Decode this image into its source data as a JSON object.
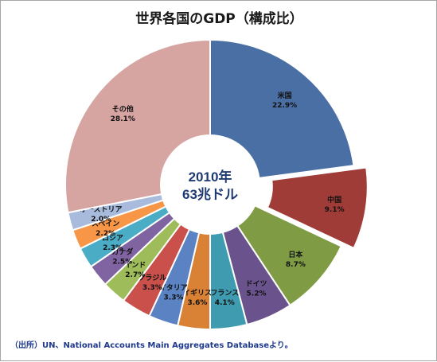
{
  "chart_data": {
    "type": "pie",
    "title": "世界各国のGDP（構成比）",
    "center_label": [
      "2010年",
      "63兆ドル"
    ],
    "source": "（出所）UN、National Accounts Main Aggregates Databaseより。",
    "slices": [
      {
        "name": "米国",
        "value": 22.9,
        "label": "22.9%",
        "color": "#4a6fa5",
        "exploded": false
      },
      {
        "name": "中国",
        "value": 9.1,
        "label": "9.1%",
        "color": "#a03c37",
        "exploded": true
      },
      {
        "name": "日本",
        "value": 8.7,
        "label": "8.7%",
        "color": "#7f9c45",
        "exploded": false
      },
      {
        "name": "ドイツ",
        "value": 5.2,
        "label": "5.2%",
        "color": "#6a538c",
        "exploded": false
      },
      {
        "name": "フランス",
        "value": 4.1,
        "label": "4.1%",
        "color": "#3f9bb0",
        "exploded": false
      },
      {
        "name": "イギリス",
        "value": 3.6,
        "label": "3.6%",
        "color": "#d98236",
        "exploded": false
      },
      {
        "name": "イタリア",
        "value": 3.3,
        "label": "3.3%",
        "color": "#5b82c2",
        "exploded": false
      },
      {
        "name": "ブラジル",
        "value": 3.3,
        "label": "3.3%",
        "color": "#c9504b",
        "exploded": false
      },
      {
        "name": "インド",
        "value": 2.7,
        "label": "2.7%",
        "color": "#9ebc59",
        "exploded": false
      },
      {
        "name": "カナダ",
        "value": 2.5,
        "label": "2.5%",
        "color": "#8064a2",
        "exploded": false
      },
      {
        "name": "ロシア",
        "value": 2.3,
        "label": "2.3%",
        "color": "#4bacc6",
        "exploded": false
      },
      {
        "name": "スペイン",
        "value": 2.2,
        "label": "2.2%",
        "color": "#f79646",
        "exploded": false
      },
      {
        "name": "オーストリア",
        "value": 2.0,
        "label": "2.0%",
        "color": "#a9bbdd",
        "exploded": false
      },
      {
        "name": "その他",
        "value": 28.1,
        "label": "28.1%",
        "color": "#d6a5a2",
        "exploded": false
      }
    ]
  }
}
